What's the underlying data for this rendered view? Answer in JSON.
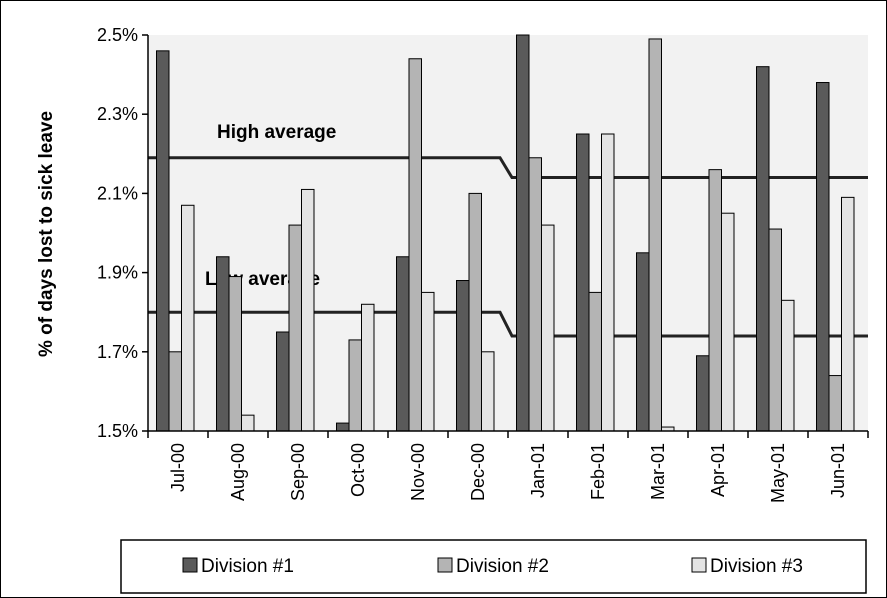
{
  "chart_data": {
    "type": "bar",
    "ylabel": "% of days lost to sick leave",
    "xlabel": "",
    "ylim": [
      1.5,
      2.5
    ],
    "yticks": [
      "1.5%",
      "1.7%",
      "1.9%",
      "2.1%",
      "2.3%",
      "2.5%"
    ],
    "ytick_values": [
      1.5,
      1.7,
      1.9,
      2.1,
      2.3,
      2.5
    ],
    "categories": [
      "Jul-00",
      "Aug-00",
      "Sep-00",
      "Oct-00",
      "Nov-00",
      "Dec-00",
      "Jan-01",
      "Feb-01",
      "Mar-01",
      "Apr-01",
      "May-01",
      "Jun-01"
    ],
    "series": [
      {
        "name": "Division #1",
        "color": "#5a5a5a",
        "values": [
          2.46,
          1.94,
          1.75,
          1.52,
          1.94,
          1.88,
          2.5,
          2.25,
          1.95,
          1.69,
          2.42,
          2.38
        ]
      },
      {
        "name": "Division #2",
        "color": "#b4b4b4",
        "values": [
          1.7,
          1.89,
          2.02,
          1.73,
          2.44,
          2.1,
          2.19,
          1.85,
          2.49,
          2.16,
          2.01,
          1.64
        ]
      },
      {
        "name": "Division #3",
        "color": "#e4e4e4",
        "values": [
          2.07,
          1.54,
          2.11,
          1.82,
          1.85,
          1.7,
          2.02,
          2.25,
          1.51,
          2.05,
          1.83,
          2.09
        ]
      }
    ],
    "reference_lines": [
      {
        "label": "High average",
        "segments": [
          {
            "from": "Jul-00",
            "to": "Dec-00",
            "value": 2.19
          },
          {
            "from": "Jan-01",
            "to": "Jun-01",
            "value": 2.14
          }
        ]
      },
      {
        "label": "Low average",
        "segments": [
          {
            "from": "Jul-00",
            "to": "Dec-00",
            "value": 1.8
          },
          {
            "from": "Jan-01",
            "to": "Jun-01",
            "value": 1.74
          }
        ]
      }
    ],
    "grid": false,
    "plot_background": "#f2f2f2",
    "legend_position": "bottom"
  }
}
